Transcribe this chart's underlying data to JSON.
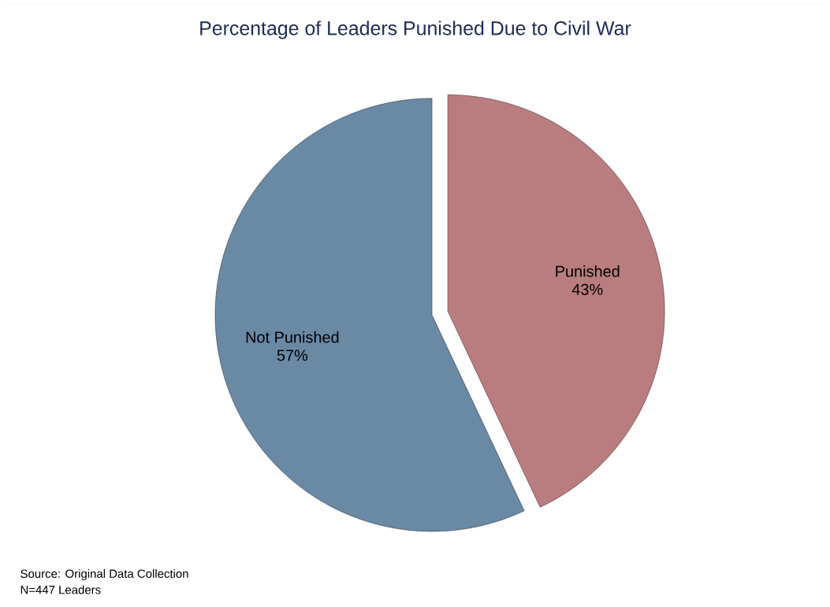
{
  "chart_data": {
    "type": "pie",
    "title": "Percentage of Leaders Punished Due to Civil War",
    "categories": [
      "Punished",
      "Not Punished"
    ],
    "values": [
      43,
      57
    ],
    "value_labels": [
      "43%",
      "57%"
    ],
    "colors": [
      "#b97d7f",
      "#6a89a5"
    ],
    "annotations": [
      "Source: Original Data Collection",
      "N=447 Leaders"
    ]
  }
}
